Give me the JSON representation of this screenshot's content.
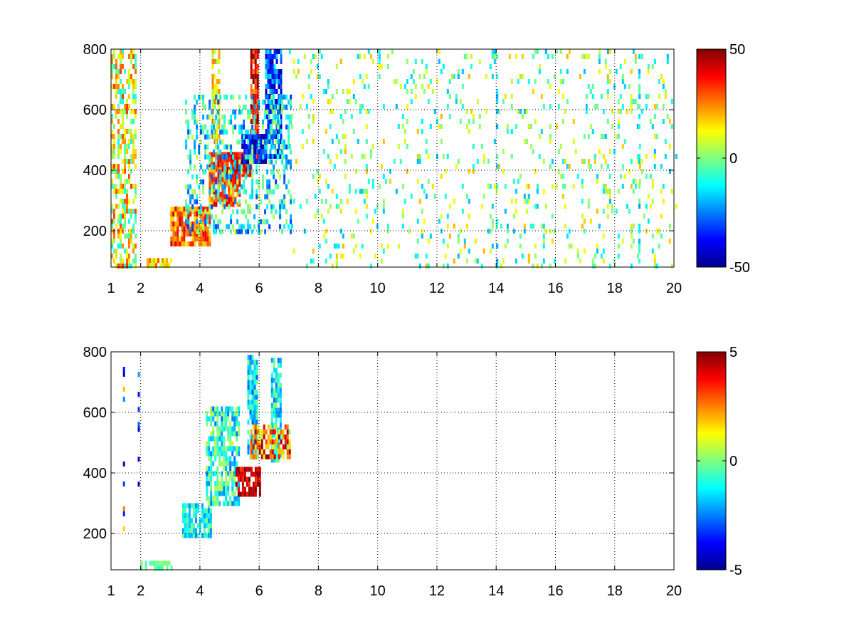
{
  "chart_data": [
    {
      "type": "heatmap",
      "xlim": [
        1,
        20
      ],
      "ylim": [
        80,
        800
      ],
      "x_ticks": [
        1,
        2,
        4,
        6,
        8,
        10,
        12,
        14,
        16,
        18,
        20
      ],
      "y_ticks": [
        200,
        400,
        600,
        800
      ],
      "grid": true,
      "colormap": "jet",
      "colorbar": {
        "min": -50,
        "max": 50,
        "ticks": [
          50,
          0,
          -50
        ],
        "placement": "right"
      },
      "features": [
        {
          "x": [
            1.0,
            1.8
          ],
          "y": [
            80,
            800
          ],
          "value": 10,
          "spread": 0.45,
          "density": 0.55
        },
        {
          "x": [
            2.2,
            3.0
          ],
          "y": [
            80,
            110
          ],
          "value": 18,
          "spread": 0.25,
          "density": 0.9
        },
        {
          "x": [
            3.0,
            4.3
          ],
          "y": [
            160,
            280
          ],
          "value": 28,
          "spread": 0.3,
          "density": 0.85
        },
        {
          "x": [
            4.3,
            5.3
          ],
          "y": [
            280,
            460
          ],
          "value": 30,
          "spread": 0.3,
          "density": 0.85
        },
        {
          "x": [
            4.9,
            5.7
          ],
          "y": [
            380,
            460
          ],
          "value": 40,
          "spread": 0.2,
          "density": 0.95
        },
        {
          "x": [
            5.7,
            5.9
          ],
          "y": [
            450,
            800
          ],
          "value": 38,
          "spread": 0.3,
          "density": 0.85
        },
        {
          "x": [
            4.4,
            4.6
          ],
          "y": [
            500,
            800
          ],
          "value": 15,
          "spread": 0.3,
          "density": 0.7
        },
        {
          "x": [
            5.4,
            6.2
          ],
          "y": [
            430,
            520
          ],
          "value": -38,
          "spread": 0.25,
          "density": 0.9
        },
        {
          "x": [
            6.2,
            6.7
          ],
          "y": [
            450,
            800
          ],
          "value": -30,
          "spread": 0.35,
          "density": 0.8
        },
        {
          "x": [
            3.5,
            7.0
          ],
          "y": [
            200,
            650
          ],
          "value": -12,
          "spread": 0.4,
          "density": 0.35
        },
        {
          "x": [
            7.0,
            20.0
          ],
          "y": [
            80,
            800
          ],
          "value": 0,
          "spread": 0.4,
          "density": 0.1
        },
        {
          "x": [
            14.0,
            14.0
          ],
          "y": [
            80,
            800
          ],
          "value": -12,
          "spread": 0.2,
          "density": 0.4
        },
        {
          "x": [
            18.8,
            18.8
          ],
          "y": [
            80,
            800
          ],
          "value": -10,
          "spread": 0.25,
          "density": 0.5
        }
      ]
    },
    {
      "type": "heatmap",
      "xlim": [
        1,
        20
      ],
      "ylim": [
        80,
        800
      ],
      "x_ticks": [
        1,
        2,
        4,
        6,
        8,
        10,
        12,
        14,
        16,
        18,
        20
      ],
      "y_ticks": [
        200,
        400,
        600,
        800
      ],
      "grid": true,
      "colormap": "jet",
      "colorbar": {
        "min": -5,
        "max": 5,
        "ticks": [
          5,
          0,
          -5
        ],
        "placement": "right"
      },
      "features": [
        {
          "x": [
            2.0,
            3.0
          ],
          "y": [
            80,
            110
          ],
          "value": -0.3,
          "spread": 0.1,
          "density": 0.75
        },
        {
          "x": [
            3.4,
            4.3
          ],
          "y": [
            190,
            300
          ],
          "value": -1.2,
          "spread": 0.25,
          "density": 0.8
        },
        {
          "x": [
            4.2,
            5.3
          ],
          "y": [
            300,
            620
          ],
          "value": -1.0,
          "spread": 0.35,
          "density": 0.7
        },
        {
          "x": [
            5.6,
            5.9
          ],
          "y": [
            450,
            790
          ],
          "value": -1.5,
          "spread": 0.3,
          "density": 0.8
        },
        {
          "x": [
            6.4,
            6.7
          ],
          "y": [
            450,
            780
          ],
          "value": -1.2,
          "spread": 0.3,
          "density": 0.8
        },
        {
          "x": [
            5.2,
            6.0
          ],
          "y": [
            330,
            420
          ],
          "value": 4.2,
          "spread": 0.2,
          "density": 0.8
        },
        {
          "x": [
            5.7,
            7.0
          ],
          "y": [
            460,
            560
          ],
          "value": 2.5,
          "spread": 0.5,
          "density": 0.7
        },
        {
          "x": [
            1.4,
            1.4
          ],
          "y": [
            100,
            800
          ],
          "value": 0,
          "spread": 1.0,
          "density": 0.25
        },
        {
          "x": [
            1.9,
            1.9
          ],
          "y": [
            320,
            750
          ],
          "value": -3.5,
          "spread": 0.3,
          "density": 0.12
        }
      ]
    }
  ]
}
